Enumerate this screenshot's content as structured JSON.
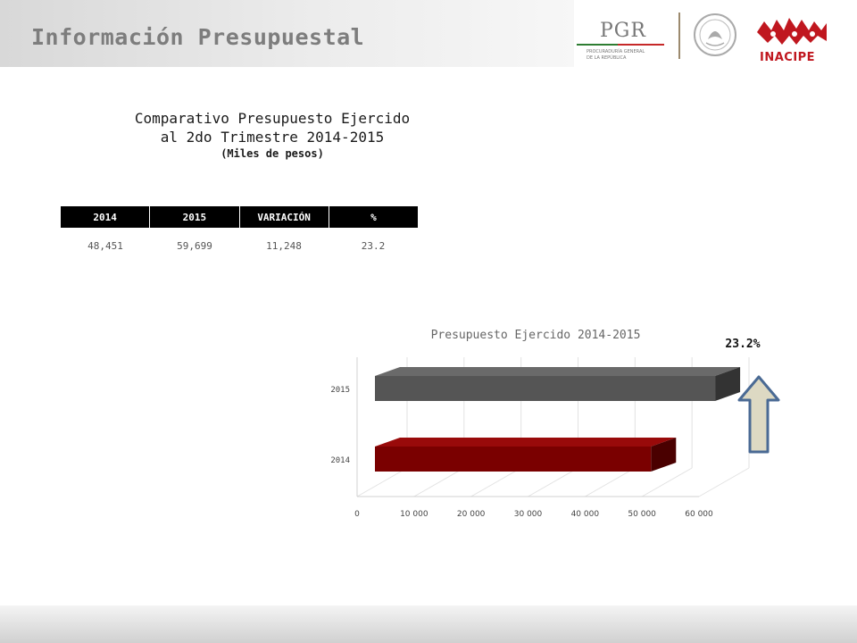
{
  "header": {
    "title": "Información Presupuestal"
  },
  "logos": {
    "pgr_text": "PGR",
    "pgr_sub1": "PROCURADURÍA GENERAL",
    "pgr_sub2": "DE LA REPÚBLICA",
    "inacipe_text": "INACIPE"
  },
  "report": {
    "title_line1": "Comparativo Presupuesto Ejercido",
    "title_line2": "al 2do Trimestre 2014-2015",
    "units": "(Miles de pesos)"
  },
  "table": {
    "headers": [
      "2014",
      "2015",
      "VARIACIÓN",
      "%"
    ],
    "row": [
      "48,451",
      "59,699",
      "11,248",
      "23.2"
    ]
  },
  "chart_data": {
    "type": "bar",
    "orientation": "horizontal",
    "title": "Presupuesto Ejercido 2014-2015",
    "categories": [
      "2014",
      "2015"
    ],
    "values": [
      48451,
      59699
    ],
    "colors": [
      "#7a0000",
      "#555555"
    ],
    "xlim": [
      0,
      60000
    ],
    "xticks": [
      0,
      10000,
      20000,
      30000,
      40000,
      50000,
      60000
    ],
    "xtick_labels": [
      "0",
      "10 000",
      "20 000",
      "30 000",
      "40 000",
      "50 000",
      "60 000"
    ],
    "grid": true,
    "annotation": "23.2%"
  }
}
